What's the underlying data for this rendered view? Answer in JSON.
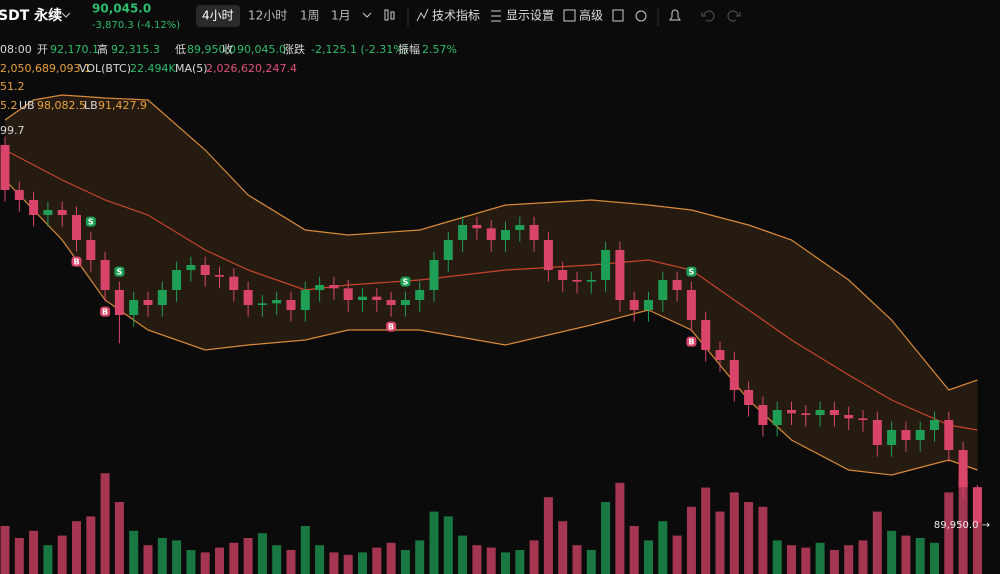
{
  "header": {
    "symbol": "SDT 永续",
    "price": "90,045.0",
    "change": "-3,870.3 (-4.12%)",
    "tabs": [
      "4小时",
      "12小时",
      "1周",
      "1月"
    ],
    "tools": [
      "技术指标",
      "显示设置",
      "高级"
    ]
  },
  "info_rows": [
    [
      {
        "text": "08:00",
        "color": "#d8d8d8"
      },
      {
        "text": "开",
        "color": "#d8d8d8"
      },
      {
        "text": "92,170.1",
        "color": "#2ebd6b"
      },
      {
        "text": "高",
        "color": "#d8d8d8"
      },
      {
        "text": "92,315.3",
        "color": "#2ebd6b"
      },
      {
        "text": "低",
        "color": "#d8d8d8"
      },
      {
        "text": "89,950.0",
        "color": "#2ebd6b"
      },
      {
        "text": "收",
        "color": "#d8d8d8"
      },
      {
        "text": "90,045.0",
        "color": "#2ebd6b"
      },
      {
        "text": "涨跌",
        "color": "#d8d8d8"
      },
      {
        "text": "-2,125.1 (-2.31%)",
        "color": "#2ebd6b"
      },
      {
        "text": "振幅",
        "color": "#d8d8d8"
      },
      {
        "text": "2.57%",
        "color": "#2ebd6b"
      }
    ],
    [
      {
        "text": "2,050,689,093.1",
        "color": "#e8a33d"
      },
      {
        "text": "VOL(BTC)",
        "color": "#d8d8d8"
      },
      {
        "text": "22.494K",
        "color": "#2ebd6b"
      },
      {
        "text": "MA(5)",
        "color": "#d8d8d8"
      },
      {
        "text": "2,026,620,247.4",
        "color": "#e0527a"
      }
    ],
    [
      {
        "text": "51.2",
        "color": "#e8a33d"
      }
    ],
    [
      {
        "text": "5.2",
        "color": "#e8a33d"
      },
      {
        "text": "UB",
        "color": "#d8d8d8"
      },
      {
        "text": "98,082.5",
        "color": "#e8a33d"
      },
      {
        "text": "LB",
        "color": "#d8d8d8"
      },
      {
        "text": "91,427.9",
        "color": "#e8a33d"
      }
    ],
    [
      {
        "text": "99.7",
        "color": "#d8d8d8"
      }
    ]
  ],
  "price_label": "89,950.0 →",
  "chart_data": {
    "type": "candlestick",
    "up_color": "#1f9e55",
    "down_color": "#d9456a",
    "ylim": [
      86960,
      121400
    ],
    "vol_ylim": [
      0,
      50000
    ],
    "candles": [
      [
        112700,
        113200,
        109300,
        110000
      ],
      [
        110000,
        110500,
        108700,
        109400
      ],
      [
        109400,
        109900,
        107800,
        108500
      ],
      [
        108500,
        109300,
        107800,
        108800
      ],
      [
        108800,
        109300,
        107800,
        108500
      ],
      [
        108500,
        109000,
        106300,
        107000
      ],
      [
        107000,
        107500,
        105100,
        105800
      ],
      [
        105800,
        106300,
        103300,
        104000
      ],
      [
        104000,
        104500,
        100800,
        102500
      ],
      [
        102500,
        103900,
        101800,
        103400
      ],
      [
        103400,
        103900,
        102400,
        103100
      ],
      [
        103100,
        104500,
        102400,
        104000
      ],
      [
        104000,
        105700,
        103300,
        105200
      ],
      [
        105200,
        106000,
        104500,
        105500
      ],
      [
        105500,
        106000,
        104200,
        104900
      ],
      [
        104900,
        105400,
        104100,
        104800
      ],
      [
        104800,
        105300,
        103300,
        104000
      ],
      [
        104000,
        104500,
        102400,
        103100
      ],
      [
        103100,
        103700,
        102400,
        103200
      ],
      [
        103200,
        103900,
        102500,
        103400
      ],
      [
        103400,
        103900,
        102100,
        102800
      ],
      [
        102800,
        104500,
        102100,
        104000
      ],
      [
        104000,
        104800,
        103300,
        104300
      ],
      [
        104300,
        104800,
        103400,
        104100
      ],
      [
        104100,
        104600,
        102700,
        103400
      ],
      [
        103400,
        104100,
        102700,
        103600
      ],
      [
        103600,
        104100,
        102700,
        103400
      ],
      [
        103400,
        103900,
        102400,
        103100
      ],
      [
        103100,
        103900,
        102400,
        103400
      ],
      [
        103400,
        104500,
        102700,
        104000
      ],
      [
        104000,
        106300,
        103300,
        105800
      ],
      [
        105800,
        107500,
        105100,
        107000
      ],
      [
        107000,
        108400,
        106300,
        107900
      ],
      [
        107900,
        108400,
        107000,
        107700
      ],
      [
        107700,
        108200,
        106300,
        107000
      ],
      [
        107000,
        108100,
        106300,
        107600
      ],
      [
        107600,
        108400,
        106900,
        107900
      ],
      [
        107900,
        108400,
        106300,
        107000
      ],
      [
        107000,
        107500,
        104500,
        105200
      ],
      [
        105200,
        105700,
        103900,
        104600
      ],
      [
        104600,
        105100,
        103800,
        104500
      ],
      [
        104500,
        105100,
        103800,
        104600
      ],
      [
        104600,
        106900,
        103900,
        106400
      ],
      [
        106400,
        106900,
        102700,
        103400
      ],
      [
        103400,
        103900,
        102100,
        102800
      ],
      [
        102800,
        103900,
        102100,
        103400
      ],
      [
        103400,
        105100,
        102700,
        104600
      ],
      [
        104600,
        105100,
        103300,
        104000
      ],
      [
        104000,
        104500,
        101500,
        102200
      ],
      [
        102200,
        102700,
        99700,
        100400
      ],
      [
        100400,
        100900,
        99100,
        99800
      ],
      [
        99800,
        100300,
        97300,
        98000
      ],
      [
        98000,
        98500,
        96400,
        97100
      ],
      [
        97100,
        97600,
        95200,
        95900
      ],
      [
        95900,
        97300,
        95200,
        96800
      ],
      [
        96800,
        97300,
        95900,
        96600
      ],
      [
        96600,
        97100,
        95800,
        96500
      ],
      [
        96500,
        97300,
        95800,
        96800
      ],
      [
        96800,
        97300,
        95800,
        96500
      ],
      [
        96500,
        97000,
        95600,
        96300
      ],
      [
        96300,
        96800,
        95500,
        96200
      ],
      [
        96200,
        96700,
        94000,
        94700
      ],
      [
        94700,
        96100,
        94000,
        95600
      ],
      [
        95600,
        96100,
        94300,
        95000
      ],
      [
        95000,
        96100,
        94300,
        95600
      ],
      [
        95600,
        96700,
        94900,
        96200
      ],
      [
        96200,
        96700,
        93700,
        94400
      ],
      [
        94400,
        94900,
        91500,
        92170
      ],
      [
        92170,
        92315,
        89950,
        90045
      ]
    ],
    "volumes": [
      20000,
      15000,
      18000,
      12000,
      16000,
      22000,
      24000,
      42000,
      30000,
      18000,
      12000,
      15000,
      14000,
      10000,
      9000,
      11000,
      13000,
      15000,
      17000,
      12000,
      10000,
      20000,
      12000,
      9000,
      8000,
      9000,
      11000,
      13000,
      10000,
      14000,
      26000,
      24000,
      16000,
      12000,
      11000,
      9000,
      10000,
      14000,
      32000,
      22000,
      12000,
      10000,
      30000,
      38000,
      20000,
      14000,
      22000,
      16000,
      28000,
      36000,
      26000,
      34000,
      30000,
      28000,
      14000,
      12000,
      11000,
      13000,
      10000,
      12000,
      14000,
      26000,
      18000,
      16000,
      15000,
      13000,
      34000,
      40000,
      22494
    ],
    "bands": {
      "x": [
        0,
        2,
        4,
        7,
        10,
        14,
        17,
        21,
        24,
        29,
        35,
        41,
        45,
        48,
        52,
        55,
        59,
        62,
        66,
        68
      ],
      "upper": [
        114200,
        115400,
        115700,
        115520,
        115400,
        112400,
        109700,
        107600,
        107300,
        107600,
        109100,
        109400,
        109100,
        108800,
        107900,
        107000,
        104600,
        102200,
        98000,
        98600
      ],
      "middle": [
        112400,
        111500,
        110600,
        109400,
        108500,
        106400,
        105200,
        104000,
        104300,
        104600,
        105200,
        105500,
        105800,
        105200,
        102800,
        101000,
        98900,
        97400,
        95900,
        95600
      ],
      "lower": [
        110600,
        108800,
        107000,
        103400,
        101600,
        100400,
        100700,
        101000,
        101600,
        101600,
        100700,
        101900,
        102800,
        101600,
        97400,
        95000,
        93200,
        92900,
        93800,
        93200
      ],
      "band_color": "#d98a3a",
      "middle_color": "#c9452c"
    },
    "markers": [
      {
        "label": "S",
        "index": 6
      },
      {
        "label": "B",
        "index": 5
      },
      {
        "label": "S",
        "index": 8
      },
      {
        "label": "B",
        "index": 7
      },
      {
        "label": "S",
        "index": 28
      },
      {
        "label": "B",
        "index": 27
      },
      {
        "label": "S",
        "index": 48
      },
      {
        "label": "B",
        "index": 48
      }
    ]
  }
}
